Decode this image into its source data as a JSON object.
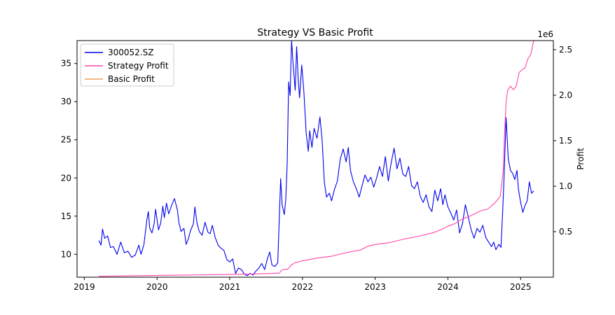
{
  "chart_data": {
    "type": "line",
    "title": "Strategy VS Basic Profit",
    "xlabel": "",
    "ylabel_left": "",
    "ylabel_right": "Profit",
    "right_axis_offset_text": "1e6",
    "x_ticks": [
      "2019",
      "2020",
      "2021",
      "2022",
      "2023",
      "2024",
      "2025"
    ],
    "y_left_ticks": [
      10,
      15,
      20,
      25,
      30,
      35
    ],
    "y_left_range": [
      7,
      38
    ],
    "y_right_ticks": [
      "0.5",
      "1.0",
      "1.5",
      "2.0",
      "2.5"
    ],
    "y_right_range": [
      0.0,
      2.6
    ],
    "x_range": [
      2018.9,
      2025.45
    ],
    "legend_position": "top-left",
    "series": [
      {
        "name": "300052.SZ",
        "axis": "left",
        "color": "#0000ee",
        "points": [
          [
            2019.2,
            11.8
          ],
          [
            2019.23,
            11.2
          ],
          [
            2019.25,
            13.3
          ],
          [
            2019.28,
            12.1
          ],
          [
            2019.32,
            12.4
          ],
          [
            2019.36,
            10.9
          ],
          [
            2019.4,
            11.0
          ],
          [
            2019.45,
            10.0
          ],
          [
            2019.5,
            11.6
          ],
          [
            2019.55,
            10.2
          ],
          [
            2019.6,
            10.4
          ],
          [
            2019.65,
            9.6
          ],
          [
            2019.7,
            9.9
          ],
          [
            2019.75,
            11.2
          ],
          [
            2019.78,
            10.0
          ],
          [
            2019.82,
            11.3
          ],
          [
            2019.86,
            14.5
          ],
          [
            2019.88,
            15.6
          ],
          [
            2019.9,
            13.4
          ],
          [
            2019.93,
            12.8
          ],
          [
            2019.96,
            14.0
          ],
          [
            2019.98,
            15.9
          ],
          [
            2020.02,
            13.2
          ],
          [
            2020.05,
            14.1
          ],
          [
            2020.08,
            16.3
          ],
          [
            2020.1,
            14.8
          ],
          [
            2020.13,
            16.7
          ],
          [
            2020.16,
            15.3
          ],
          [
            2020.2,
            16.4
          ],
          [
            2020.24,
            17.3
          ],
          [
            2020.28,
            15.8
          ],
          [
            2020.3,
            14.2
          ],
          [
            2020.33,
            13.0
          ],
          [
            2020.37,
            13.4
          ],
          [
            2020.4,
            11.3
          ],
          [
            2020.43,
            12.0
          ],
          [
            2020.46,
            13.1
          ],
          [
            2020.5,
            14.0
          ],
          [
            2020.52,
            16.2
          ],
          [
            2020.55,
            14.1
          ],
          [
            2020.58,
            13.0
          ],
          [
            2020.62,
            12.5
          ],
          [
            2020.66,
            14.2
          ],
          [
            2020.7,
            12.9
          ],
          [
            2020.73,
            12.7
          ],
          [
            2020.76,
            13.8
          ],
          [
            2020.8,
            12.2
          ],
          [
            2020.84,
            11.2
          ],
          [
            2020.88,
            10.8
          ],
          [
            2020.92,
            10.5
          ],
          [
            2020.96,
            9.3
          ],
          [
            2021.0,
            9.0
          ],
          [
            2021.04,
            9.4
          ],
          [
            2021.08,
            7.5
          ],
          [
            2021.12,
            8.2
          ],
          [
            2021.16,
            8.0
          ],
          [
            2021.2,
            7.4
          ],
          [
            2021.24,
            7.2
          ],
          [
            2021.28,
            7.5
          ],
          [
            2021.32,
            7.3
          ],
          [
            2021.36,
            7.8
          ],
          [
            2021.4,
            8.2
          ],
          [
            2021.44,
            8.8
          ],
          [
            2021.48,
            8.0
          ],
          [
            2021.52,
            9.5
          ],
          [
            2021.55,
            10.3
          ],
          [
            2021.58,
            8.6
          ],
          [
            2021.62,
            8.4
          ],
          [
            2021.66,
            8.9
          ],
          [
            2021.7,
            19.9
          ],
          [
            2021.72,
            16.5
          ],
          [
            2021.75,
            15.2
          ],
          [
            2021.77,
            17.1
          ],
          [
            2021.79,
            22.0
          ],
          [
            2021.81,
            32.6
          ],
          [
            2021.83,
            30.8
          ],
          [
            2021.85,
            38.0
          ],
          [
            2021.87,
            35.1
          ],
          [
            2021.9,
            31.5
          ],
          [
            2021.92,
            37.2
          ],
          [
            2021.94,
            33.1
          ],
          [
            2021.96,
            30.5
          ],
          [
            2021.99,
            34.8
          ],
          [
            2022.02,
            31.2
          ],
          [
            2022.05,
            26.0
          ],
          [
            2022.08,
            23.5
          ],
          [
            2022.1,
            26.2
          ],
          [
            2022.13,
            24.0
          ],
          [
            2022.16,
            26.5
          ],
          [
            2022.2,
            25.2
          ],
          [
            2022.24,
            28.0
          ],
          [
            2022.27,
            25.0
          ],
          [
            2022.3,
            19.5
          ],
          [
            2022.33,
            17.5
          ],
          [
            2022.37,
            18.0
          ],
          [
            2022.4,
            17.0
          ],
          [
            2022.44,
            18.5
          ],
          [
            2022.48,
            19.6
          ],
          [
            2022.52,
            22.5
          ],
          [
            2022.56,
            23.8
          ],
          [
            2022.6,
            22.1
          ],
          [
            2022.63,
            24.0
          ],
          [
            2022.66,
            21.0
          ],
          [
            2022.7,
            19.5
          ],
          [
            2022.74,
            18.6
          ],
          [
            2022.78,
            17.5
          ],
          [
            2022.82,
            19.0
          ],
          [
            2022.86,
            20.4
          ],
          [
            2022.9,
            19.5
          ],
          [
            2022.94,
            20.1
          ],
          [
            2022.98,
            18.8
          ],
          [
            2023.02,
            20.0
          ],
          [
            2023.06,
            21.5
          ],
          [
            2023.1,
            20.2
          ],
          [
            2023.14,
            22.8
          ],
          [
            2023.18,
            19.6
          ],
          [
            2023.22,
            22.0
          ],
          [
            2023.26,
            23.9
          ],
          [
            2023.3,
            21.2
          ],
          [
            2023.34,
            22.6
          ],
          [
            2023.38,
            20.5
          ],
          [
            2023.42,
            20.2
          ],
          [
            2023.46,
            21.5
          ],
          [
            2023.5,
            19.0
          ],
          [
            2023.54,
            18.6
          ],
          [
            2023.58,
            19.5
          ],
          [
            2023.62,
            17.6
          ],
          [
            2023.66,
            16.8
          ],
          [
            2023.7,
            17.8
          ],
          [
            2023.74,
            16.2
          ],
          [
            2023.78,
            15.6
          ],
          [
            2023.82,
            18.4
          ],
          [
            2023.86,
            17.0
          ],
          [
            2023.9,
            18.6
          ],
          [
            2023.93,
            16.5
          ],
          [
            2023.96,
            17.8
          ],
          [
            2024.0,
            16.2
          ],
          [
            2024.04,
            15.4
          ],
          [
            2024.08,
            14.5
          ],
          [
            2024.12,
            15.8
          ],
          [
            2024.16,
            12.8
          ],
          [
            2024.2,
            14.0
          ],
          [
            2024.24,
            16.5
          ],
          [
            2024.28,
            14.9
          ],
          [
            2024.32,
            13.2
          ],
          [
            2024.36,
            12.1
          ],
          [
            2024.4,
            13.4
          ],
          [
            2024.44,
            12.9
          ],
          [
            2024.48,
            13.8
          ],
          [
            2024.52,
            12.2
          ],
          [
            2024.56,
            11.6
          ],
          [
            2024.6,
            11.0
          ],
          [
            2024.63,
            11.6
          ],
          [
            2024.66,
            10.6
          ],
          [
            2024.7,
            11.3
          ],
          [
            2024.73,
            10.9
          ],
          [
            2024.75,
            15.0
          ],
          [
            2024.77,
            19.5
          ],
          [
            2024.8,
            27.9
          ],
          [
            2024.83,
            22.5
          ],
          [
            2024.86,
            21.0
          ],
          [
            2024.89,
            20.6
          ],
          [
            2024.92,
            19.8
          ],
          [
            2024.95,
            21.0
          ],
          [
            2024.97,
            18.5
          ],
          [
            2025.0,
            16.8
          ],
          [
            2025.03,
            15.5
          ],
          [
            2025.06,
            16.4
          ],
          [
            2025.09,
            17.0
          ],
          [
            2025.12,
            19.5
          ],
          [
            2025.15,
            18.0
          ],
          [
            2025.18,
            18.3
          ]
        ]
      },
      {
        "name": "Strategy Profit",
        "axis": "right",
        "color": "#ff44aa",
        "points": [
          [
            2019.2,
            0.01
          ],
          [
            2019.6,
            0.015
          ],
          [
            2020.0,
            0.02
          ],
          [
            2020.5,
            0.025
          ],
          [
            2021.0,
            0.03
          ],
          [
            2021.3,
            0.035
          ],
          [
            2021.5,
            0.04
          ],
          [
            2021.68,
            0.045
          ],
          [
            2021.72,
            0.08
          ],
          [
            2021.8,
            0.09
          ],
          [
            2021.84,
            0.13
          ],
          [
            2021.9,
            0.16
          ],
          [
            2022.0,
            0.18
          ],
          [
            2022.2,
            0.21
          ],
          [
            2022.4,
            0.23
          ],
          [
            2022.6,
            0.27
          ],
          [
            2022.8,
            0.3
          ],
          [
            2022.9,
            0.34
          ],
          [
            2023.0,
            0.36
          ],
          [
            2023.2,
            0.38
          ],
          [
            2023.4,
            0.42
          ],
          [
            2023.6,
            0.45
          ],
          [
            2023.8,
            0.49
          ],
          [
            2023.9,
            0.52
          ],
          [
            2024.0,
            0.56
          ],
          [
            2024.1,
            0.59
          ],
          [
            2024.2,
            0.64
          ],
          [
            2024.3,
            0.67
          ],
          [
            2024.45,
            0.73
          ],
          [
            2024.55,
            0.75
          ],
          [
            2024.65,
            0.82
          ],
          [
            2024.72,
            0.89
          ],
          [
            2024.76,
            1.16
          ],
          [
            2024.78,
            1.6
          ],
          [
            2024.8,
            1.92
          ],
          [
            2024.82,
            2.05
          ],
          [
            2024.86,
            2.1
          ],
          [
            2024.9,
            2.06
          ],
          [
            2024.94,
            2.1
          ],
          [
            2024.98,
            2.25
          ],
          [
            2025.02,
            2.28
          ],
          [
            2025.06,
            2.3
          ],
          [
            2025.1,
            2.4
          ],
          [
            2025.14,
            2.45
          ],
          [
            2025.18,
            2.6
          ]
        ]
      },
      {
        "name": "Basic Profit",
        "axis": "right",
        "color": "#f0a060",
        "points": []
      }
    ]
  }
}
